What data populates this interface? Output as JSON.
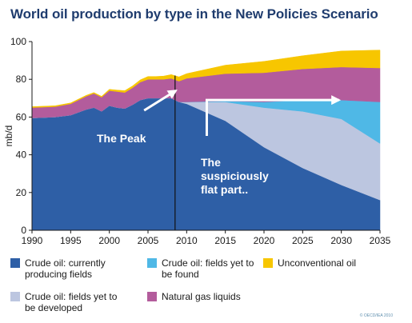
{
  "title": "World oil production by type in the New Policies Scenario",
  "credit": "© OECD/IEA 2010",
  "colors": {
    "crude_current": "#2e5fa6",
    "crude_developed": "#bcc6e0",
    "crude_found": "#4fb8e6",
    "ngl": "#b35c9c",
    "unconventional": "#f7c600",
    "axis": "#1a1a1a",
    "annotation": "#ffffff"
  },
  "chart_data": {
    "type": "area",
    "stacked": true,
    "title": "World oil production by type in the New Policies Scenario",
    "xlabel": "",
    "ylabel": "mb/d",
    "xlim": [
      1990,
      2035
    ],
    "ylim": [
      0,
      100
    ],
    "x_ticks": [
      1990,
      1995,
      2000,
      2005,
      2010,
      2015,
      2020,
      2025,
      2030,
      2035
    ],
    "y_ticks": [
      0,
      20,
      40,
      60,
      80,
      100
    ],
    "grid": false,
    "x": [
      1990,
      1993,
      1995,
      1997,
      1998,
      1999,
      2000,
      2001,
      2002,
      2003,
      2004,
      2005,
      2006,
      2007,
      2008,
      2009,
      2010,
      2015,
      2020,
      2025,
      2030,
      2035
    ],
    "series": [
      {
        "name": "Crude oil: currently producing fields",
        "color_key": "crude_current",
        "values": [
          59.5,
          60,
          61,
          64,
          65,
          63,
          66,
          65,
          64.5,
          66.5,
          69,
          70,
          70,
          70,
          70,
          68,
          67,
          58,
          44,
          33,
          24,
          16
        ]
      },
      {
        "name": "Crude oil: fields yet to be developed",
        "color_key": "crude_developed",
        "values": [
          0,
          0,
          0,
          0,
          0,
          0,
          0,
          0,
          0,
          0,
          0,
          0,
          0,
          0,
          0,
          0,
          1,
          10,
          21,
          30,
          35,
          30
        ]
      },
      {
        "name": "Crude oil: fields yet to be found",
        "color_key": "crude_found",
        "values": [
          0,
          0,
          0,
          0,
          0,
          0,
          0,
          0,
          0,
          0,
          0,
          0,
          0,
          0,
          0,
          0,
          0,
          0.5,
          3,
          6,
          10,
          22
        ]
      },
      {
        "name": "Natural gas liquids",
        "color_key": "ngl",
        "values": [
          5.5,
          5.5,
          6,
          7,
          7.5,
          7.5,
          8,
          8.5,
          8.5,
          9,
          9.5,
          10,
          10,
          10,
          10.5,
          11,
          12.5,
          14.5,
          15.5,
          16.5,
          17.5,
          18
        ]
      },
      {
        "name": "Unconventional oil",
        "color_key": "unconventional",
        "values": [
          0.5,
          0.5,
          0.5,
          0.5,
          0.5,
          0.5,
          0.7,
          0.8,
          1,
          1,
          1.2,
          1.5,
          1.5,
          1.7,
          2,
          2.3,
          2.5,
          4.5,
          6,
          7,
          8.5,
          9.5
        ]
      }
    ],
    "annotations": [
      {
        "text": "The Peak",
        "arrow_from": [
          2004.5,
          63.5
        ],
        "arrow_to": [
          2008.6,
          74
        ]
      },
      {
        "text": [
          "The",
          "suspiciously",
          "flat part.."
        ],
        "arrow_path": [
          [
            2012.6,
            50
          ],
          [
            2012.6,
            69
          ],
          [
            2029.7,
            69
          ]
        ]
      }
    ],
    "peak_line_year": 2008.5,
    "legend_position": "bottom"
  },
  "legend": [
    {
      "label": "Crude oil: currently producing fields",
      "color_key": "crude_current"
    },
    {
      "label": "Crude oil: fields yet to be found",
      "color_key": "crude_found"
    },
    {
      "label": "Unconventional oil",
      "color_key": "unconventional"
    },
    {
      "label": "Crude oil: fields yet to be developed",
      "color_key": "crude_developed"
    },
    {
      "label": "Natural gas liquids",
      "color_key": "ngl"
    }
  ]
}
